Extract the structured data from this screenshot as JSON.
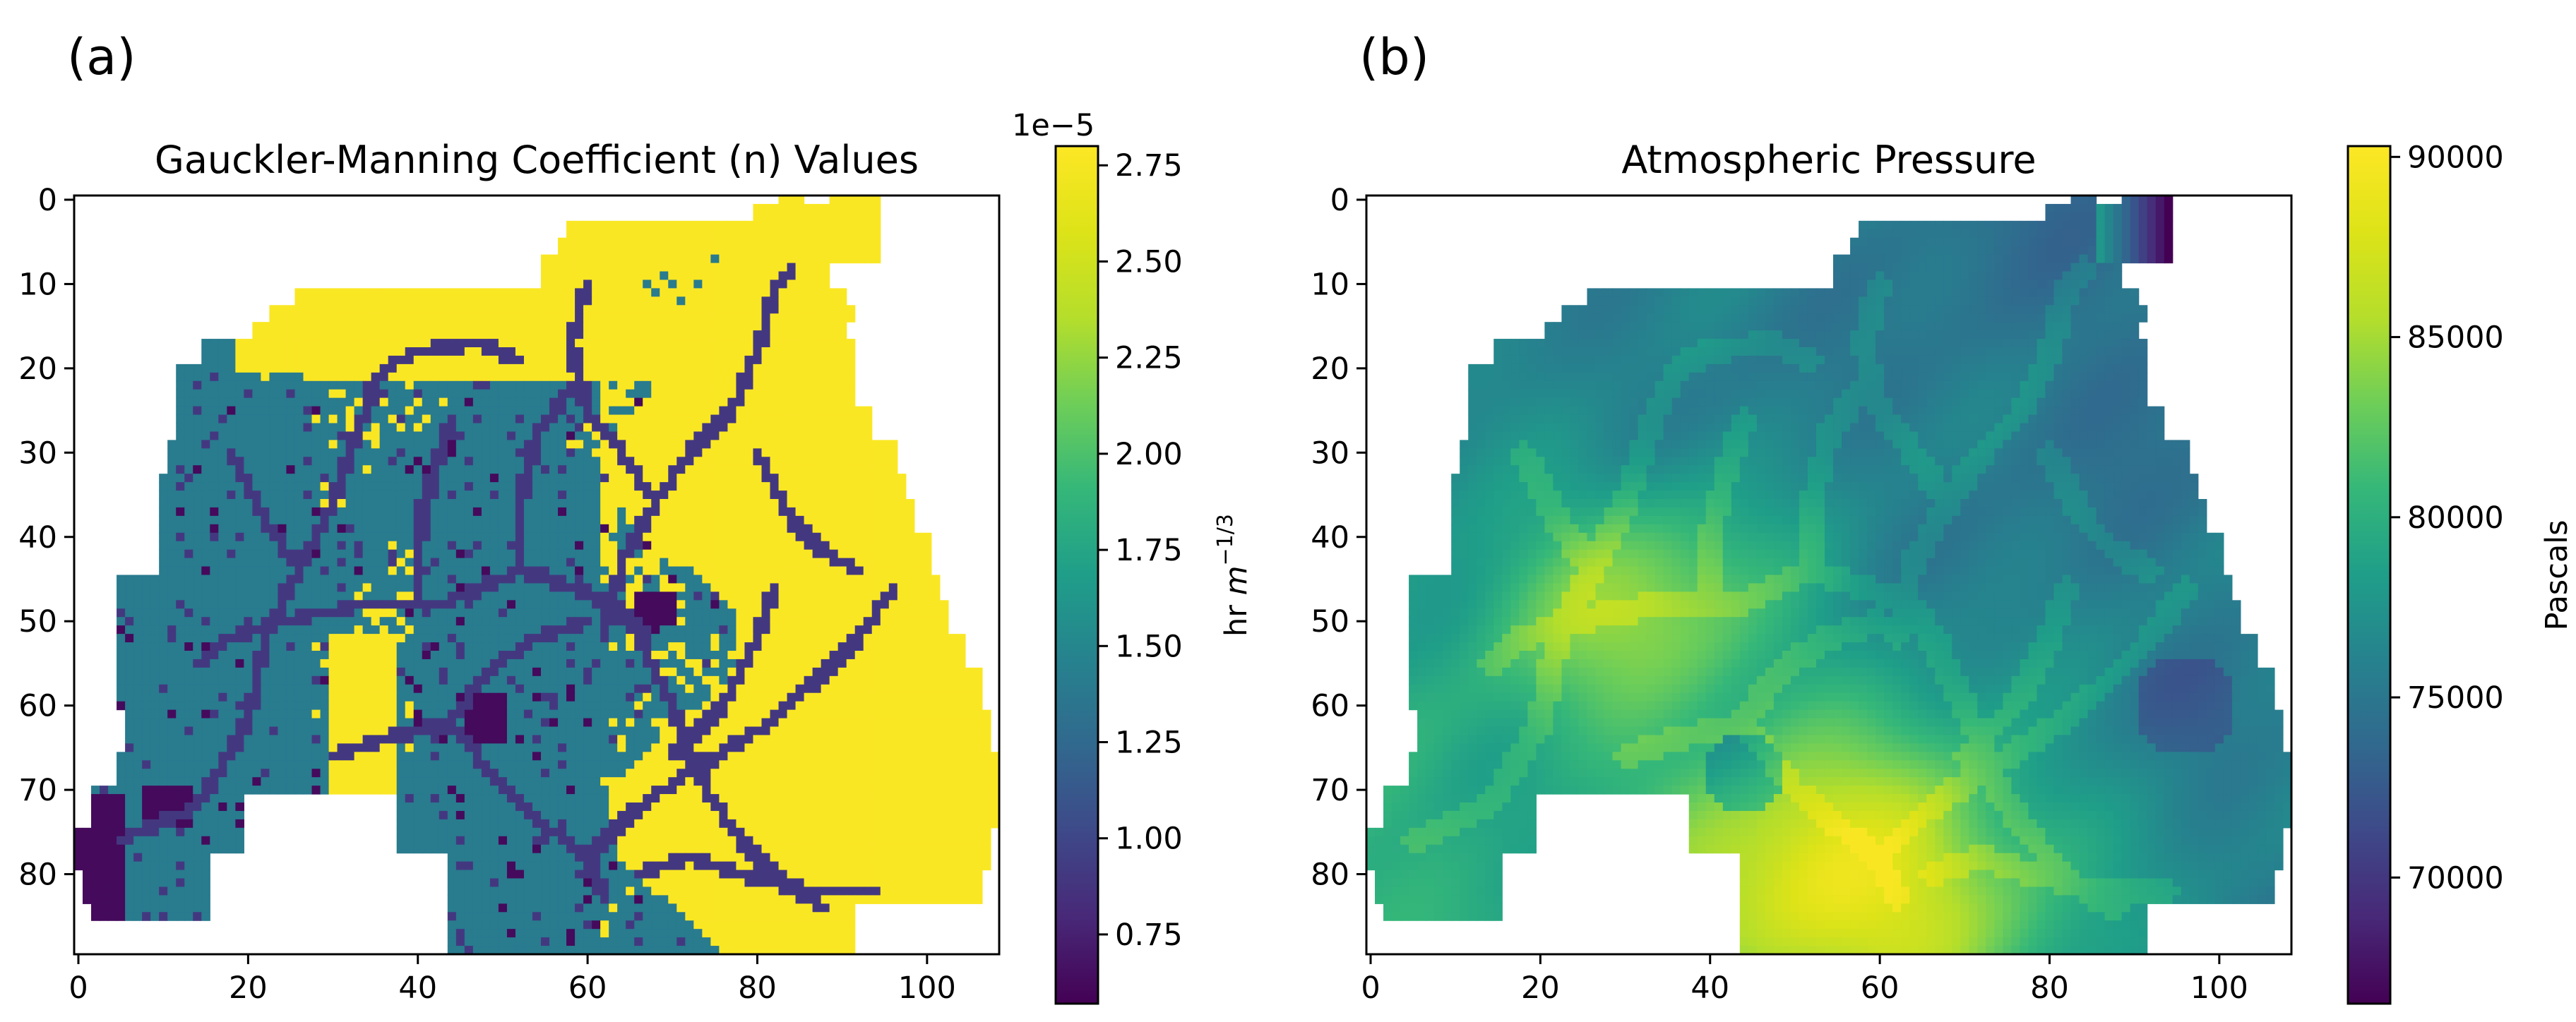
{
  "panels": [
    {
      "label": "(a)",
      "chart_data": {
        "type": "heatmap",
        "title": "Gauckler-Manning Coefficient (n) Values",
        "xlabel": "",
        "ylabel": "",
        "x_ticks": [
          "0",
          "20",
          "40",
          "60",
          "80",
          "100"
        ],
        "y_ticks": [
          "0",
          "10",
          "20",
          "30",
          "40",
          "50",
          "60",
          "70",
          "80"
        ],
        "xlim": [
          0,
          108
        ],
        "ylim": [
          89.5,
          -0.5
        ],
        "colormap": "viridis",
        "colorbar": {
          "label": "hr m^-1/3",
          "label_base": "hr ",
          "label_var": "m",
          "label_exp": "−1/3",
          "offset_text": "1e−5",
          "ticks": [
            "0.75",
            "1.00",
            "1.25",
            "1.50",
            "1.75",
            "2.00",
            "2.25",
            "2.50",
            "2.75"
          ],
          "range": [
            0.57,
            2.8
          ]
        },
        "value_classes": {
          "channel": 0.9,
          "low": 0.62,
          "grass": 1.4,
          "open": 2.78
        },
        "notes": "classified land-cover field: yellow ~2.78e-5, teal ~1.4e-5, purple river network ~0.9e-5"
      }
    },
    {
      "label": "(b)",
      "chart_data": {
        "type": "heatmap",
        "title": "Atmospheric Pressure",
        "xlabel": "",
        "ylabel": "",
        "x_ticks": [
          "0",
          "20",
          "40",
          "60",
          "80",
          "100"
        ],
        "y_ticks": [
          "0",
          "10",
          "20",
          "30",
          "40",
          "50",
          "60",
          "70",
          "80"
        ],
        "xlim": [
          0,
          108
        ],
        "ylim": [
          89.5,
          -0.5
        ],
        "colormap": "viridis",
        "colorbar": {
          "label": "Pascals",
          "ticks": [
            "70000",
            "75000",
            "80000",
            "85000",
            "90000"
          ],
          "range": [
            66500,
            90300
          ]
        },
        "value_range": [
          66500,
          90000
        ],
        "notes": "continuous field: highest (~89000-90000) in south-centre, lowest (~76000) in north-east, a small low (~67000) at top-right tip"
      }
    }
  ],
  "colors": {
    "viridis_low": "#440154",
    "viridis_mid": "#21918c",
    "viridis_high": "#fde725"
  }
}
